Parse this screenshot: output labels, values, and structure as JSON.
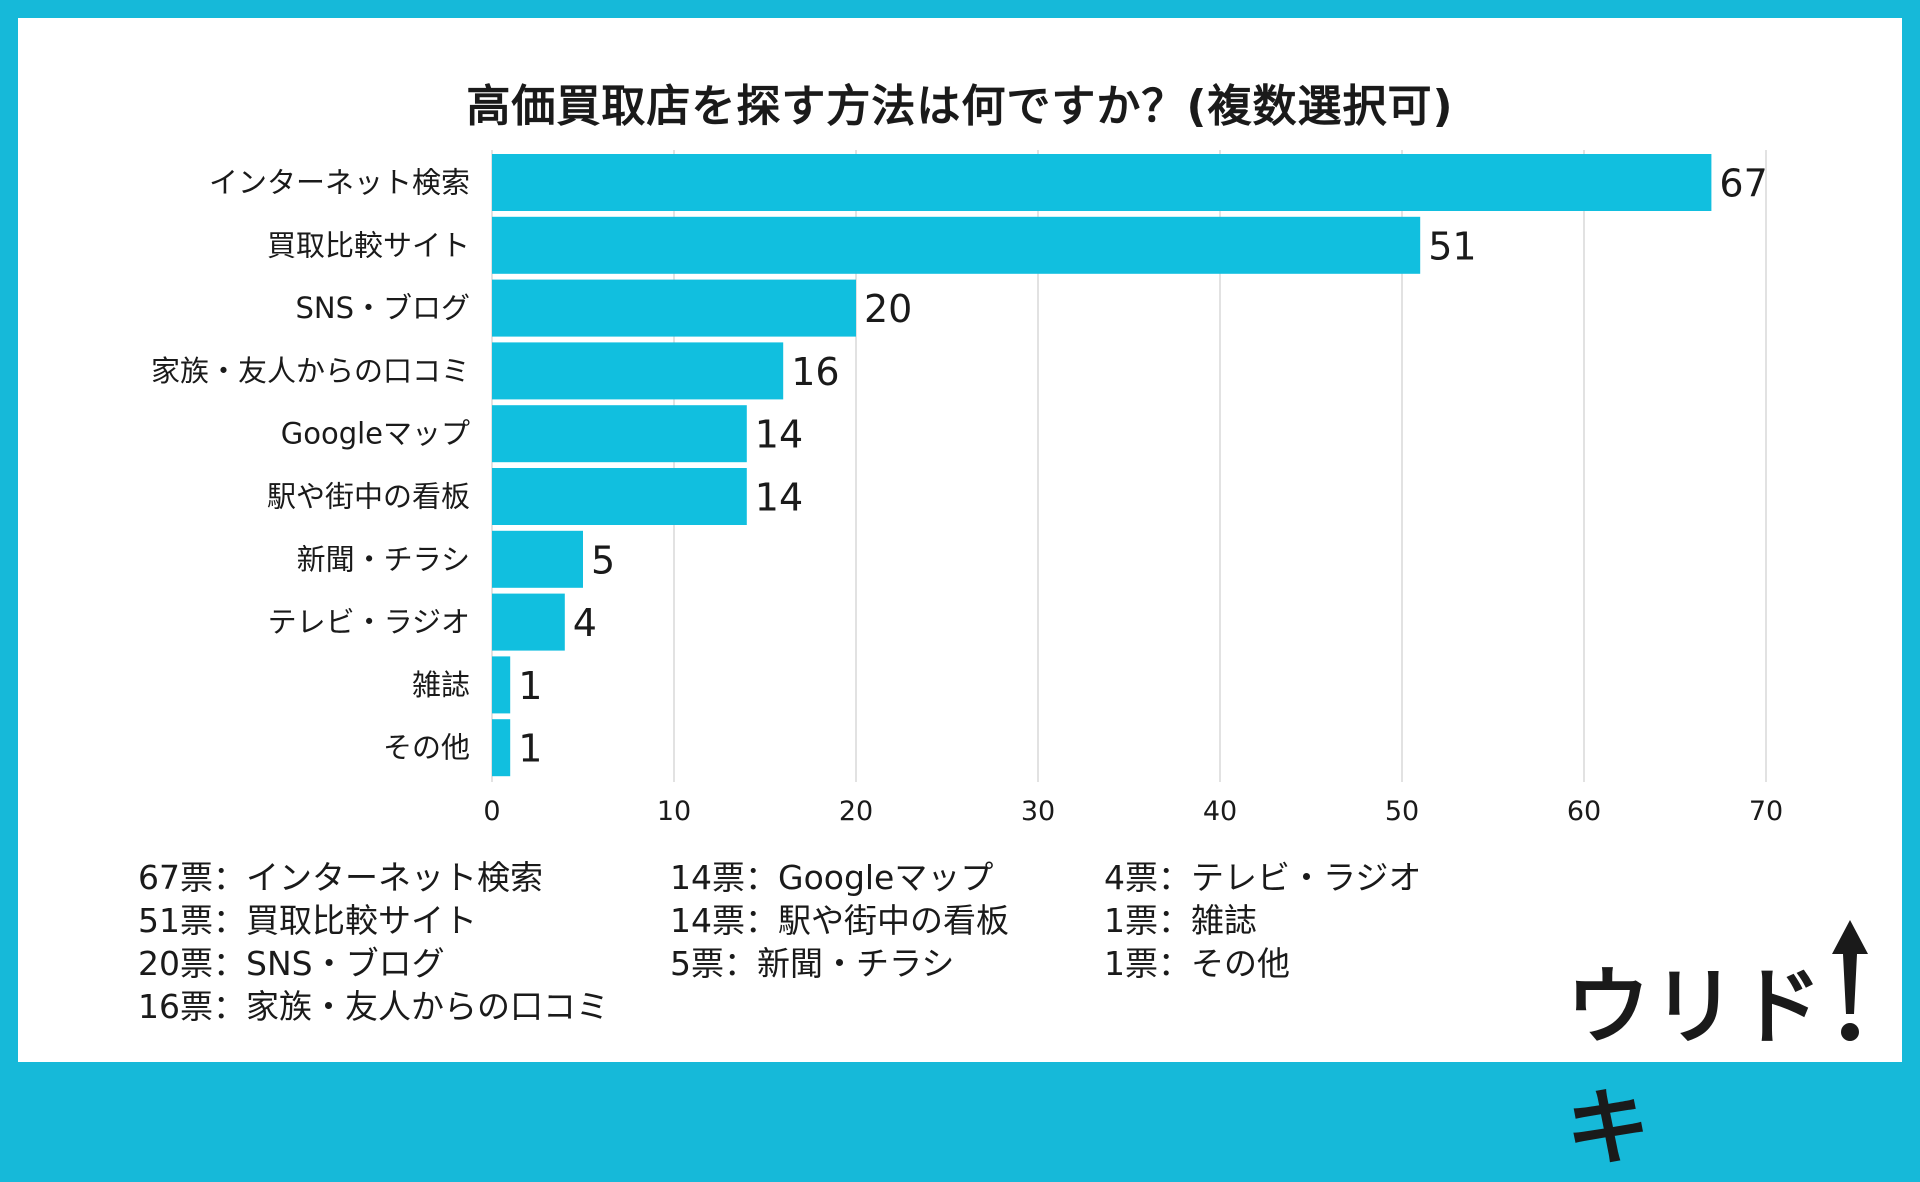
{
  "chart_data": {
    "type": "bar",
    "orientation": "horizontal",
    "title": "高価買取店を探す方法は何ですか？(複数選択可)",
    "categories": [
      "インターネット検索",
      "買取比較サイト",
      "SNS・ブログ",
      "家族・友人からの口コミ",
      "Googleマップ",
      "駅や街中の看板",
      "新聞・チラシ",
      "テレビ・ラジオ",
      "雑誌",
      "その他"
    ],
    "values": [
      67,
      51,
      20,
      16,
      14,
      14,
      5,
      4,
      1,
      1
    ],
    "xlim": [
      0,
      70
    ],
    "xticks": [
      "0",
      "10",
      "20",
      "30",
      "40",
      "50",
      "60",
      "70"
    ],
    "grid": true,
    "bar_color": "#11bfdf"
  },
  "legend": {
    "col1": [
      "67票：インターネット検索",
      "51票：買取比較サイト",
      "20票：SNS・ブログ",
      "16票：家族・友人からの口コミ"
    ],
    "col2": [
      "14票：Googleマップ",
      "14票：駅や街中の看板",
      "5票：新聞・チラシ"
    ],
    "col3": [
      "4票：テレビ・ラジオ",
      "1票：雑誌",
      "1票：その他"
    ]
  },
  "logo": {
    "text": "ウリドキ"
  },
  "colors": {
    "frame": "#16b9d9",
    "bar": "#11bfdf",
    "grid": "#d9d9d9"
  }
}
